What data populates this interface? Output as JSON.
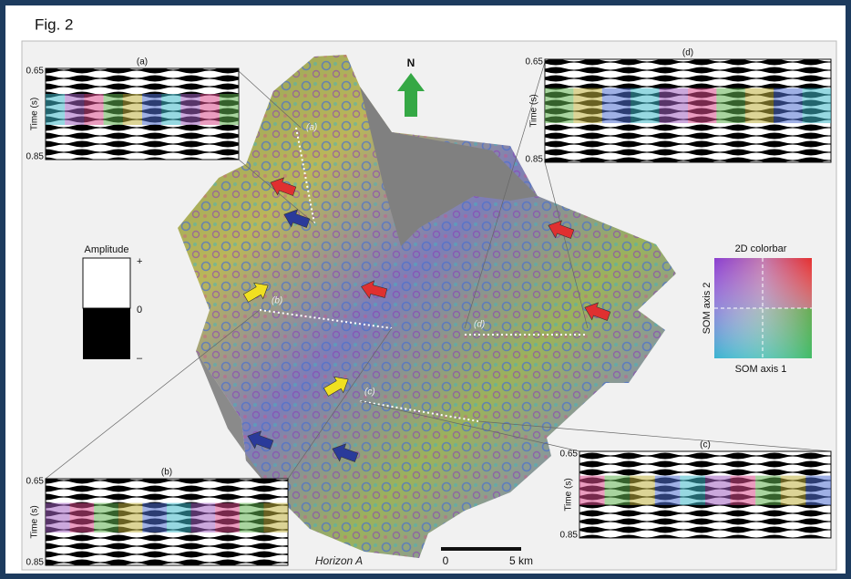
{
  "figure": {
    "label": "Fig. 2"
  },
  "insets": [
    {
      "label": "(a)",
      "y_label": "Time (s)",
      "y_top": "0.65",
      "y_bottom": "0.85"
    },
    {
      "label": "(b)",
      "y_label": "Time (s)",
      "y_top": "0.65",
      "y_bottom": "0.85"
    },
    {
      "label": "(c)",
      "y_label": "Time (s)",
      "y_top": "0.65",
      "y_bottom": "0.85"
    },
    {
      "label": "(d)",
      "y_label": "Time (s)",
      "y_top": "0.65",
      "y_bottom": "0.85"
    }
  ],
  "map": {
    "north": "N",
    "horizon": "Horizon A",
    "line_labels": [
      "(a)",
      "(b)",
      "(c)",
      "(d)"
    ],
    "scale_bar": {
      "start": "0",
      "end": "5 km"
    }
  },
  "amplitude_legend": {
    "title": "Amplitude",
    "plus": "+",
    "zero": "0",
    "minus": "–"
  },
  "som_colorbar": {
    "title": "2D colorbar",
    "y_label": "SOM axis 2",
    "x_label": "SOM axis 1"
  }
}
